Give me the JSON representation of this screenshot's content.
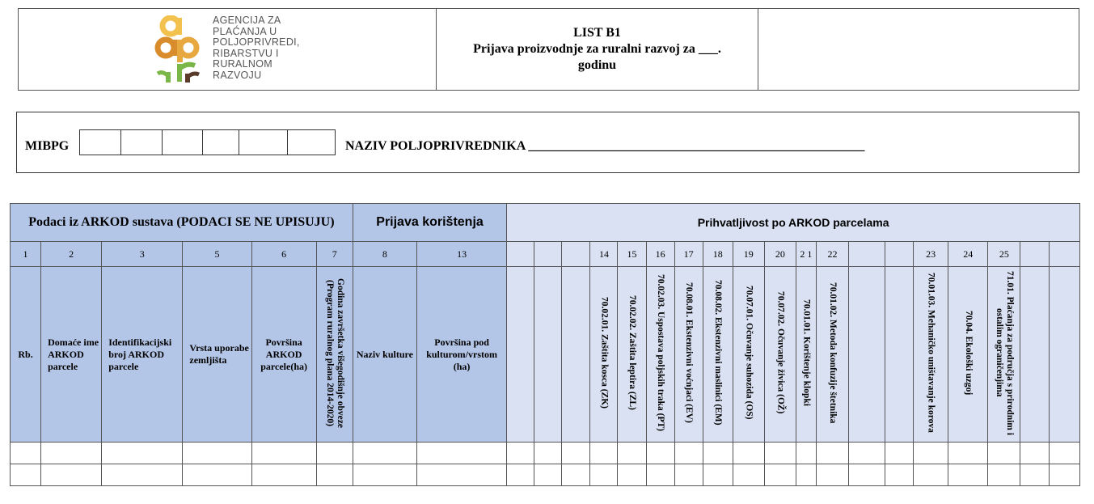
{
  "header": {
    "logo": {
      "lines": [
        "AGENCIJA ZA",
        "PLAĆANJA U",
        "POLJOPRIVREDI,",
        "RIBARSTVU I",
        "RURALNOM",
        "RAZVOJU"
      ],
      "colors": {
        "yellow": "#f2c14e",
        "orange": "#d98c2b",
        "green": "#7ab648",
        "brown": "#5a3a2a"
      }
    },
    "title_line1": "LIST B1",
    "title_line2": "Prijava proizvodnje za ruralni razvoj za ___.",
    "title_line3": "godinu"
  },
  "farmer": {
    "mibpg_label": "MIBPG",
    "naziv_label": "NAZIV POLJOPRIVREDNIKA ____________________________________________________"
  },
  "table": {
    "group_arkod": "Podaci iz ARKOD sustava (PODACI SE NE UPISUJU)",
    "group_prijava": "Prijava korištenja",
    "group_prihvatljivost": "Prihvatljivost po ARKOD parcelama",
    "columns": [
      {
        "num": "1",
        "label": "Rb."
      },
      {
        "num": "2",
        "label": "Domaće ime ARKOD parcele"
      },
      {
        "num": "3",
        "label": "Identifikacijski broj ARKOD parcele"
      },
      {
        "num": "5",
        "label": "Vrsta uporabe zemljišta"
      },
      {
        "num": "6",
        "label": "Površina ARKOD parcele(ha)"
      },
      {
        "num": "7",
        "label": "Godina završetka višegodišnje obveze (Program ruralnog plana 2014-2020)"
      },
      {
        "num": "8",
        "label": "Naziv kulture"
      },
      {
        "num": "13",
        "label": "Površina pod kulturom/vrstom (ha)"
      },
      {
        "num": "",
        "label": ""
      },
      {
        "num": "",
        "label": ""
      },
      {
        "num": "",
        "label": ""
      },
      {
        "num": "14",
        "label": "70.02.01. Zaštita kosca (ZK)"
      },
      {
        "num": "15",
        "label": "70.02.02. Zaštita leptira (ZL)"
      },
      {
        "num": "16",
        "label": "70.02.03. Uspostava poljskih traka (PT)"
      },
      {
        "num": "17",
        "label": "70.08.01. Ekstenzivni voćnjaci (EV)"
      },
      {
        "num": "18",
        "label": "70.08.02. Ekstenzivni maslinici (EM)"
      },
      {
        "num": "19",
        "label": "70.07.01. Očuvanje suhozida (OS)"
      },
      {
        "num": "20",
        "label": "70.07.02. Očuvanje živica (OŽ)"
      },
      {
        "num": "2 1",
        "label": "70.01.01. Korištenje klopki"
      },
      {
        "num": "22",
        "label": "70.01.02. Metoda konfuzije štetnika"
      },
      {
        "num": "",
        "label": ""
      },
      {
        "num": "",
        "label": ""
      },
      {
        "num": "23",
        "label": "70.01.03. Mehaničko uništavanje korova"
      },
      {
        "num": "24",
        "label": "70.04. Ekološki uzgoj"
      },
      {
        "num": "25",
        "label": "71.01. Plaćanja za područja s prirodnim i ostalim ograničenjima"
      },
      {
        "num": "",
        "label": ""
      },
      {
        "num": "",
        "label": ""
      }
    ],
    "colors": {
      "arkod_header": "#b4c6e7",
      "prihvatljivost_header": "#d9e1f2"
    }
  }
}
